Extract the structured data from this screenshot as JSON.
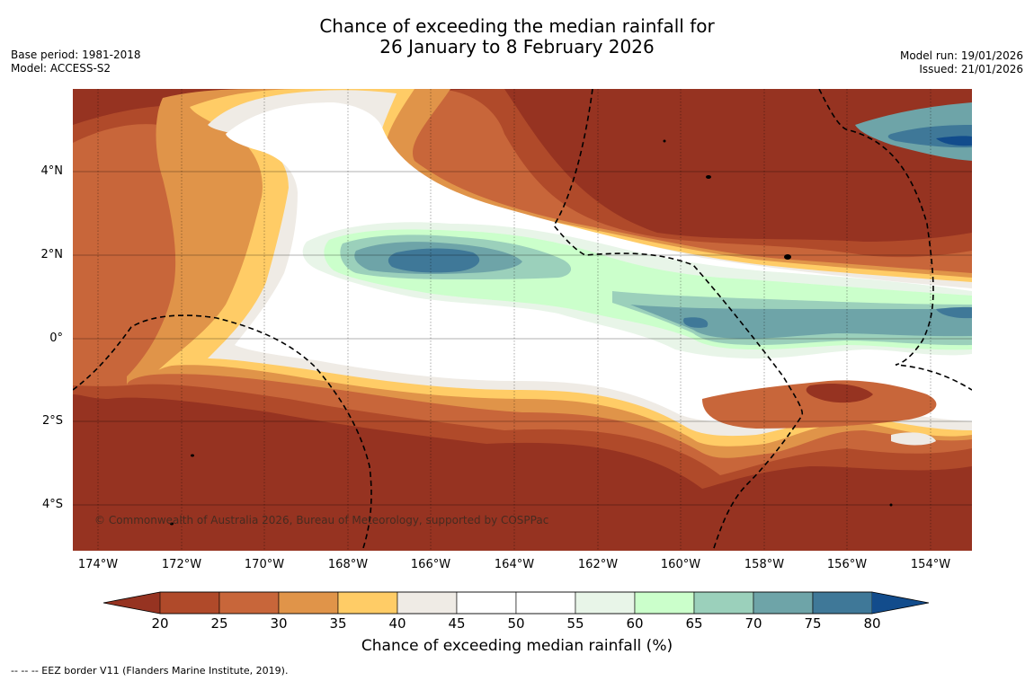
{
  "title": {
    "line1": "Chance of exceeding the median rainfall for",
    "line2": "26 January to 8 February 2026"
  },
  "meta": {
    "base_period": "Base period: 1981-2018",
    "model": "Model: ACCESS-S2",
    "model_run": "Model run: 19/01/2026",
    "issued": "Issued: 21/01/2026"
  },
  "map": {
    "lat_labels": [
      "4°N",
      "2°N",
      "0°",
      "2°S",
      "4°S"
    ],
    "lon_labels": [
      "174°W",
      "172°W",
      "170°W",
      "168°W",
      "166°W",
      "164°W",
      "162°W",
      "160°W",
      "158°W",
      "156°W",
      "154°W"
    ],
    "copyright": "© Commonwealth of Australia 2026, Bureau of Meteorology, supported by COSPPac"
  },
  "colorbar": {
    "labels": [
      "20",
      "25",
      "30",
      "35",
      "40",
      "45",
      "50",
      "55",
      "60",
      "65",
      "70",
      "75",
      "80"
    ],
    "colors": [
      "#963321",
      "#b04a2a",
      "#c8663a",
      "#e09449",
      "#ffcc66",
      "#efebe5",
      "#ffffff",
      "#ffffff",
      "#e8f5e8",
      "#cbffcb",
      "#9bd0bb",
      "#6ea4a8",
      "#3f7898",
      "#124c8c"
    ],
    "title": "Chance of exceeding median rainfall (%)"
  },
  "footer": "-- -- -- EEZ border V11 (Flanders Marine Institute, 2019)."
}
